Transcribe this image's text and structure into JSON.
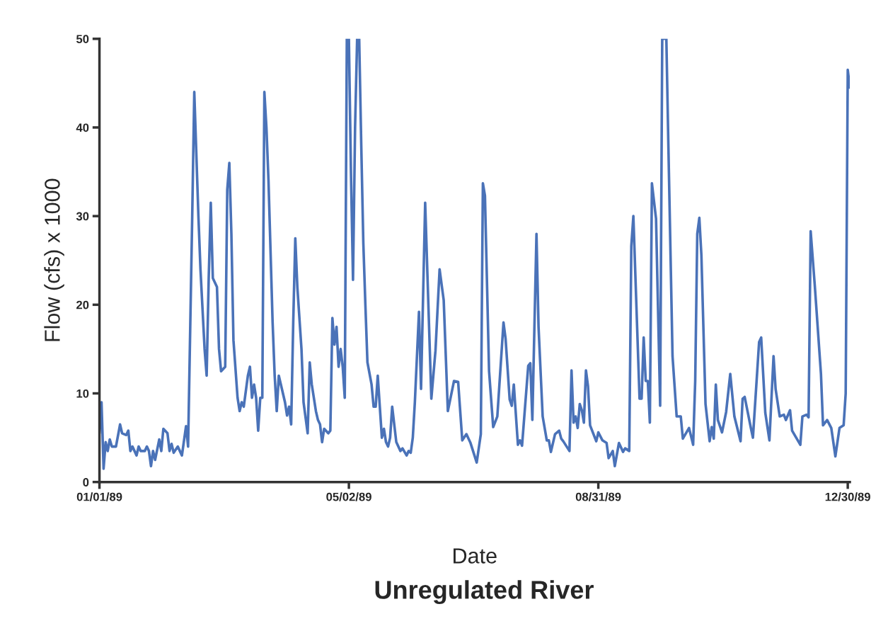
{
  "chart_data": {
    "type": "line",
    "title": "Unregulated River",
    "xlabel": "Date",
    "ylabel": "Flow (cfs) x 1000",
    "x": [
      "1989-01-01",
      "1989-01-02",
      "1989-01-03",
      "1989-01-04",
      "1989-01-05",
      "1989-01-06",
      "1989-01-07",
      "1989-01-09",
      "1989-01-11",
      "1989-01-12",
      "1989-01-14",
      "1989-01-15",
      "1989-01-16",
      "1989-01-17",
      "1989-01-19",
      "1989-01-20",
      "1989-01-21",
      "1989-01-23",
      "1989-01-24",
      "1989-01-25",
      "1989-01-26",
      "1989-01-27",
      "1989-01-28",
      "1989-01-30",
      "1989-01-31",
      "1989-02-01",
      "1989-02-03",
      "1989-02-04",
      "1989-02-05",
      "1989-02-06",
      "1989-02-08",
      "1989-02-09",
      "1989-02-10",
      "1989-02-12",
      "1989-02-13",
      "1989-02-15",
      "1989-02-16",
      "1989-02-18",
      "1989-02-19",
      "1989-02-21",
      "1989-02-22",
      "1989-02-23",
      "1989-02-24",
      "1989-02-25",
      "1989-02-27",
      "1989-02-28",
      "1989-03-01",
      "1989-03-03",
      "1989-03-04",
      "1989-03-05",
      "1989-03-06",
      "1989-03-07",
      "1989-03-09",
      "1989-03-10",
      "1989-03-11",
      "1989-03-12",
      "1989-03-14",
      "1989-03-15",
      "1989-03-16",
      "1989-03-17",
      "1989-03-18",
      "1989-03-19",
      "1989-03-20",
      "1989-03-21",
      "1989-03-22",
      "1989-03-23",
      "1989-03-24",
      "1989-03-26",
      "1989-03-27",
      "1989-03-28",
      "1989-03-29",
      "1989-03-30",
      "1989-04-01",
      "1989-04-02",
      "1989-04-03",
      "1989-04-04",
      "1989-04-05",
      "1989-04-06",
      "1989-04-07",
      "1989-04-09",
      "1989-04-10",
      "1989-04-12",
      "1989-04-13",
      "1989-04-14",
      "1989-04-16",
      "1989-04-17",
      "1989-04-18",
      "1989-04-19",
      "1989-04-20",
      "1989-04-22",
      "1989-04-23",
      "1989-04-24",
      "1989-04-25",
      "1989-04-26",
      "1989-04-27",
      "1989-04-28",
      "1989-04-29",
      "1989-04-30",
      "1989-05-01",
      "1989-05-02",
      "1989-05-03",
      "1989-05-04",
      "1989-05-05",
      "1989-05-06",
      "1989-05-07",
      "1989-05-08",
      "1989-05-09",
      "1989-05-10",
      "1989-05-11",
      "1989-05-13",
      "1989-05-14",
      "1989-05-15",
      "1989-05-16",
      "1989-05-17",
      "1989-05-18",
      "1989-05-19",
      "1989-05-20",
      "1989-05-21",
      "1989-05-22",
      "1989-05-23",
      "1989-05-25",
      "1989-05-27",
      "1989-05-28",
      "1989-05-30",
      "1989-05-31",
      "1989-06-01",
      "1989-06-02",
      "1989-06-03",
      "1989-06-05",
      "1989-06-06",
      "1989-06-08",
      "1989-06-11",
      "1989-06-13",
      "1989-06-15",
      "1989-06-17",
      "1989-06-19",
      "1989-06-22",
      "1989-06-24",
      "1989-06-26",
      "1989-06-28",
      "1989-06-30",
      "1989-07-03",
      "1989-07-05",
      "1989-07-06",
      "1989-07-07",
      "1989-07-09",
      "1989-07-11",
      "1989-07-13",
      "1989-07-16",
      "1989-07-17",
      "1989-07-19",
      "1989-07-20",
      "1989-07-21",
      "1989-07-23",
      "1989-07-24",
      "1989-07-25",
      "1989-07-28",
      "1989-07-29",
      "1989-07-30",
      "1989-08-01",
      "1989-08-02",
      "1989-08-04",
      "1989-08-06",
      "1989-08-07",
      "1989-08-08",
      "1989-08-10",
      "1989-08-12",
      "1989-08-13",
      "1989-08-14",
      "1989-08-17",
      "1989-08-18",
      "1989-08-19",
      "1989-08-20",
      "1989-08-21",
      "1989-08-22",
      "1989-08-23",
      "1989-08-24",
      "1989-08-25",
      "1989-08-26",
      "1989-08-27",
      "1989-08-30",
      "1989-08-31",
      "1989-09-02",
      "1989-09-04",
      "1989-09-05",
      "1989-09-07",
      "1989-09-08",
      "1989-09-10",
      "1989-09-12",
      "1989-09-13",
      "1989-09-15",
      "1989-09-16",
      "1989-09-17",
      "1989-09-20",
      "1989-09-21",
      "1989-09-22",
      "1989-09-23",
      "1989-09-24",
      "1989-09-25",
      "1989-09-26",
      "1989-09-28",
      "1989-09-30",
      "1989-10-01",
      "1989-10-03",
      "1989-10-04",
      "1989-10-06",
      "1989-10-08",
      "1989-10-10",
      "1989-10-11",
      "1989-10-14",
      "1989-10-16",
      "1989-10-17",
      "1989-10-18",
      "1989-10-19",
      "1989-10-20",
      "1989-10-22",
      "1989-10-24",
      "1989-10-25",
      "1989-10-26",
      "1989-10-27",
      "1989-10-28",
      "1989-10-30",
      "1989-11-01",
      "1989-11-03",
      "1989-11-05",
      "1989-11-08",
      "1989-11-09",
      "1989-11-10",
      "1989-11-13",
      "1989-11-14",
      "1989-11-17",
      "1989-11-18",
      "1989-11-20",
      "1989-11-22",
      "1989-11-24",
      "1989-11-25",
      "1989-11-27",
      "1989-11-29",
      "1989-11-30",
      "1989-12-02",
      "1989-12-03",
      "1989-12-05",
      "1989-12-07",
      "1989-12-08",
      "1989-12-10",
      "1989-12-11",
      "1989-12-12",
      "1989-12-14",
      "1989-12-17",
      "1989-12-18",
      "1989-12-20",
      "1989-12-22",
      "1989-12-24",
      "1989-12-26",
      "1989-12-28",
      "1989-12-29",
      "1989-12-30",
      "1989-12-31"
    ],
    "series": [
      {
        "color": "#4a72b8",
        "values": [
          5.5,
          9,
          1.5,
          4.5,
          3.5,
          4.8,
          4,
          4,
          6.5,
          5.5,
          5.3,
          5.8,
          3.5,
          4,
          3,
          4,
          3.5,
          3.5,
          4,
          3.5,
          1.8,
          3.5,
          2.5,
          4.8,
          3.5,
          6,
          5.5,
          3.5,
          4.3,
          3.3,
          4,
          3.5,
          3,
          6.3,
          4,
          30,
          44,
          30,
          24,
          15,
          12,
          23,
          31.5,
          23,
          22,
          15,
          12.5,
          13,
          33,
          36,
          28,
          16,
          9.5,
          8,
          9,
          8.5,
          12,
          13,
          9.5,
          11,
          9.5,
          5.8,
          9.5,
          9.5,
          44,
          40,
          34,
          18,
          12,
          8,
          12,
          11,
          9,
          7.5,
          8.5,
          6.5,
          18,
          27.5,
          22,
          15,
          9,
          5.5,
          13.5,
          11,
          8,
          7,
          6.5,
          4.5,
          6,
          5.5,
          5.8,
          18.5,
          15.5,
          17.5,
          13,
          15,
          13,
          9.5,
          50,
          50,
          35,
          22.8,
          40,
          50,
          50,
          38,
          27,
          20,
          13.5,
          11,
          8.5,
          8.5,
          12,
          8.5,
          5,
          6,
          4.5,
          4,
          5,
          8.5,
          4.5,
          3.5,
          3.8,
          3,
          3.5,
          3.3,
          5,
          9,
          19.2,
          10.5,
          31.5,
          9.4,
          14.8,
          24,
          20.5,
          8,
          11.4,
          11.3,
          4.7,
          5.4,
          4.4,
          2.2,
          5.4,
          33.7,
          32.3,
          12.5,
          6.2,
          7.4,
          18,
          16.2,
          9.3,
          8.6,
          11,
          4.2,
          4.7,
          4.1,
          13.1,
          13.4,
          7,
          28,
          17.5,
          7.4,
          4.7,
          4.7,
          3.4,
          5.4,
          5.8,
          4.9,
          4.6,
          3.5,
          12.6,
          6.7,
          7.4,
          6.1,
          8.8,
          8.1,
          6.7,
          12.6,
          10.8,
          6.4,
          4.6,
          5.6,
          4.7,
          4.4,
          2.7,
          3.5,
          1.8,
          4.4,
          3.4,
          3.8,
          3.5,
          26.6,
          30,
          9.4,
          9.4,
          16.3,
          11.4,
          11.4,
          6.7,
          33.7,
          29.7,
          8.6,
          50,
          50,
          37.8,
          14.2,
          7.4,
          7.4,
          4.9,
          6.1,
          4.2,
          11.4,
          28,
          29.8,
          25.6,
          8.8,
          4.6,
          6.2,
          4.9,
          11,
          7,
          5.6,
          7.9,
          12.2,
          7.4,
          4.6,
          9.4,
          9.6,
          6.1,
          5,
          15.8,
          16.3,
          7.8,
          4.7,
          14.2,
          10.5,
          7.4,
          7.6,
          7,
          8.1,
          5.8,
          5,
          4.2,
          7.4,
          7.6,
          7.3,
          28.3,
          22.2,
          12.2,
          6.4,
          7,
          6.1,
          2.9,
          6.1,
          6.4,
          10,
          46.5,
          44.5
        ]
      }
    ],
    "xlim": [
      "1989-01-01",
      "1989-12-31"
    ],
    "xticks": [
      {
        "value": "1989-01-01",
        "label": "01/01/89"
      },
      {
        "value": "1989-05-02",
        "label": "05/02/89"
      },
      {
        "value": "1989-08-31",
        "label": "08/31/89"
      },
      {
        "value": "1989-12-30",
        "label": "12/30/89"
      }
    ],
    "ylim": [
      0,
      50
    ],
    "yticks": [
      0,
      10,
      20,
      30,
      40,
      50
    ],
    "grid": false,
    "marker": "none",
    "line_style": "solid"
  }
}
